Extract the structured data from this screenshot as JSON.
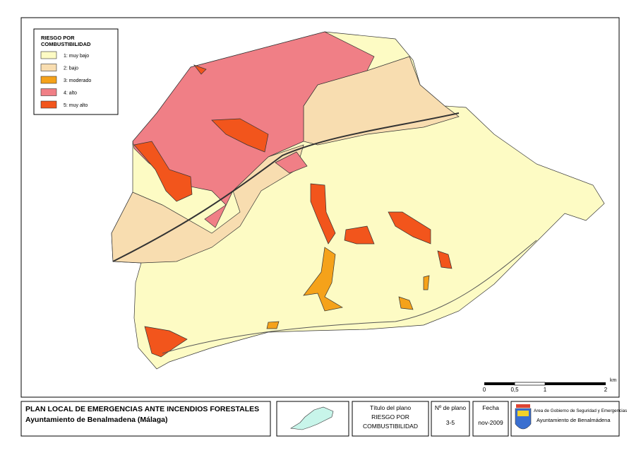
{
  "legend": {
    "title_lines": [
      "RIESGO POR",
      "COMBUSTIBILIDAD"
    ],
    "items": [
      {
        "label": "1: muy bajo",
        "color": "#fdfbc4"
      },
      {
        "label": "2: bajo",
        "color": "#f8ddb0"
      },
      {
        "label": "3: moderado",
        "color": "#f5a21a"
      },
      {
        "label": "4: alto",
        "color": "#f07f86"
      },
      {
        "label": "5: muy alto",
        "color": "#f2551c"
      }
    ]
  },
  "scale": {
    "unit": "km",
    "labels": [
      "0",
      "0,5",
      "1",
      "2"
    ]
  },
  "footer": {
    "title": "PLAN LOCAL DE EMERGENCIAS ANTE INCENDIOS FORESTALES",
    "subtitle": "Ayuntamiento de Benalmadena (Málaga)",
    "plan_title_label": "Título del plano",
    "plan_title_lines": [
      "RIESGO POR",
      "COMBUSTIBILIDAD"
    ],
    "plan_number_label": "Nº de plano",
    "plan_number": "3-5",
    "date_label": "Fecha",
    "date": "nov-2009",
    "org": "Area de Gobierno de Seguridad y Emergencias",
    "org_name": "Ayuntamiento de Benalmádena"
  }
}
